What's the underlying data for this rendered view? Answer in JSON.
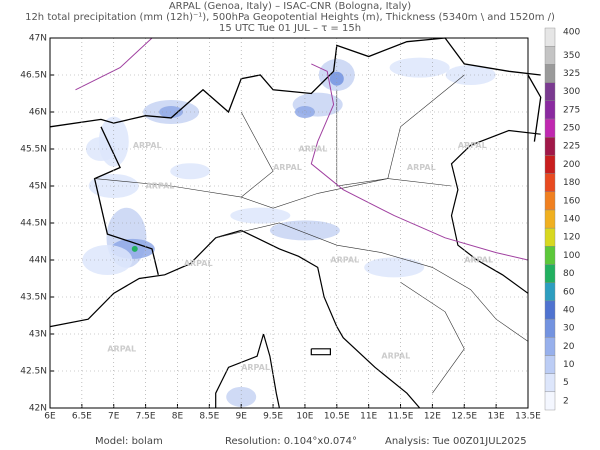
{
  "header": {
    "line1": "ARPAL (Genoa, Italy)  –  ISAC-CNR (Bologna, Italy)",
    "line2": "12h total precipitation (mm (12h)⁻¹), 500hPa Geopotential Heights (m), Thickness (5340m \\ and 1520m /)",
    "line3": "15 UTC Tue 01 JUL  –  τ = 15h"
  },
  "map": {
    "lon_labels": [
      "6E",
      "6.5E",
      "7E",
      "7.5E",
      "8E",
      "8.5E",
      "9E",
      "9.5E",
      "10E",
      "10.5E",
      "11E",
      "11.5E",
      "12E",
      "12.5E",
      "13E",
      "13.5E"
    ],
    "lat_labels": [
      "47N",
      "46.5N",
      "46N",
      "45.5N",
      "45N",
      "44.5N",
      "44N",
      "43.5N",
      "43N",
      "42.5N",
      "42N"
    ],
    "watermark": "ARPAL"
  },
  "colorbar": {
    "levels": [
      2,
      5,
      10,
      20,
      30,
      40,
      60,
      80,
      100,
      120,
      140,
      160,
      180,
      200,
      225,
      250,
      275,
      300,
      325,
      350,
      400
    ],
    "colors": [
      "#f4f7ff",
      "#dde6fb",
      "#bccdf5",
      "#97b0ec",
      "#7393e0",
      "#4f73d0",
      "#2d9ec0",
      "#22b060",
      "#5cc83a",
      "#d8d820",
      "#f0b020",
      "#f08020",
      "#e84a20",
      "#c81e1e",
      "#a01848",
      "#c028b0",
      "#8a2aa0",
      "#7a3a90",
      "#9a9a9a",
      "#c4c4c4",
      "#e6e6e6"
    ]
  },
  "footer": {
    "model": "Model: bolam",
    "resolution": "Resolution: 0.104°x0.074°",
    "analysis": "Analysis: Tue 00Z01JUL2025"
  }
}
